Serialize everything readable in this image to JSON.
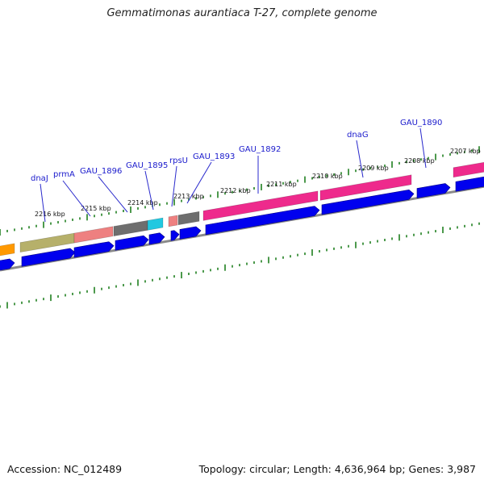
{
  "title": "Gemmatimonas aurantiaca T-27, complete genome",
  "footer": {
    "accession": "Accession: NC_012489",
    "summary": "Topology: circular; Length: 4,636,964 bp; Genes: 3,987"
  },
  "colors": {
    "cds": "#0000ee",
    "backbone": "#8a8a8a",
    "tick": "#117711",
    "label": "#1a1acc",
    "feature_pink": "#ee2a8c",
    "feature_olive": "#b6b06a",
    "feature_salmon": "#ee8080",
    "feature_gray": "#6e6e6e",
    "feature_cyan": "#22c8e0",
    "feature_orange": "#ff9900"
  },
  "scale_labels": [
    "2216 kbp",
    "2215 kbp",
    "2214 kbp",
    "2213 kbp",
    "2212 kbp",
    "2211 kbp",
    "2210 kbp",
    "2209 kbp",
    "2208 kbp",
    "2207 kbp"
  ],
  "gene_labels": [
    "dnaJ",
    "prmA",
    "GAU_1896",
    "GAU_1895",
    "rpsU",
    "GAU_1893",
    "GAU_1892",
    "dnaG",
    "GAU_1890"
  ]
}
